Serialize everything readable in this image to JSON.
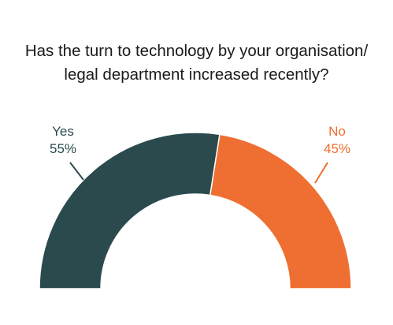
{
  "chart_data": {
    "type": "pie",
    "style": "semi-donut",
    "title_lines": [
      "Has the turn to technology by your organisation/",
      "legal department increased recently?"
    ],
    "slices": [
      {
        "label": "Yes",
        "value": 55,
        "value_label": "55%",
        "color": "#2b4a4e"
      },
      {
        "label": "No",
        "value": 45,
        "value_label": "45%",
        "color": "#ee6f31"
      }
    ]
  }
}
